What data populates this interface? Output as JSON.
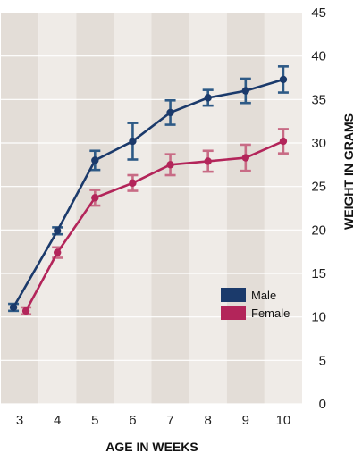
{
  "chart_data": {
    "type": "line",
    "title": "",
    "xlabel": "AGE IN WEEKS",
    "ylabel": "WEIGHT IN GRAMS",
    "x": [
      3,
      4,
      5,
      6,
      7,
      8,
      9,
      10
    ],
    "x_tick_labels": [
      "3",
      "4",
      "5",
      "6",
      "7",
      "8",
      "9",
      "10"
    ],
    "y_tick_labels": [
      "0",
      "5",
      "10",
      "15",
      "20",
      "25",
      "30",
      "35",
      "40",
      "45"
    ],
    "ylim": [
      0,
      45
    ],
    "y_axis_side": "right",
    "grid": true,
    "legend_position": "bottom-right",
    "background_colors": [
      "#e3ddd7",
      "#efebe7"
    ],
    "series": [
      {
        "name": "Male",
        "color": "#1b3a6b",
        "error_color": "#2e5a86",
        "values": [
          11.1,
          19.9,
          28.0,
          30.2,
          33.5,
          35.2,
          36.0,
          37.3
        ],
        "error_low": [
          10.7,
          19.5,
          26.9,
          28.1,
          32.1,
          34.3,
          34.6,
          35.8
        ],
        "error_high": [
          11.5,
          20.3,
          29.1,
          32.3,
          34.9,
          36.1,
          37.4,
          38.8
        ]
      },
      {
        "name": "Female",
        "color": "#b3255a",
        "error_color": "#c86b85",
        "values": [
          10.7,
          17.4,
          23.7,
          25.4,
          27.5,
          27.9,
          28.3,
          30.2
        ],
        "error_low": [
          10.3,
          16.8,
          22.8,
          24.5,
          26.3,
          26.7,
          26.8,
          28.8
        ],
        "error_high": [
          11.1,
          18.0,
          24.6,
          26.3,
          28.7,
          29.1,
          29.8,
          31.6
        ]
      }
    ]
  }
}
